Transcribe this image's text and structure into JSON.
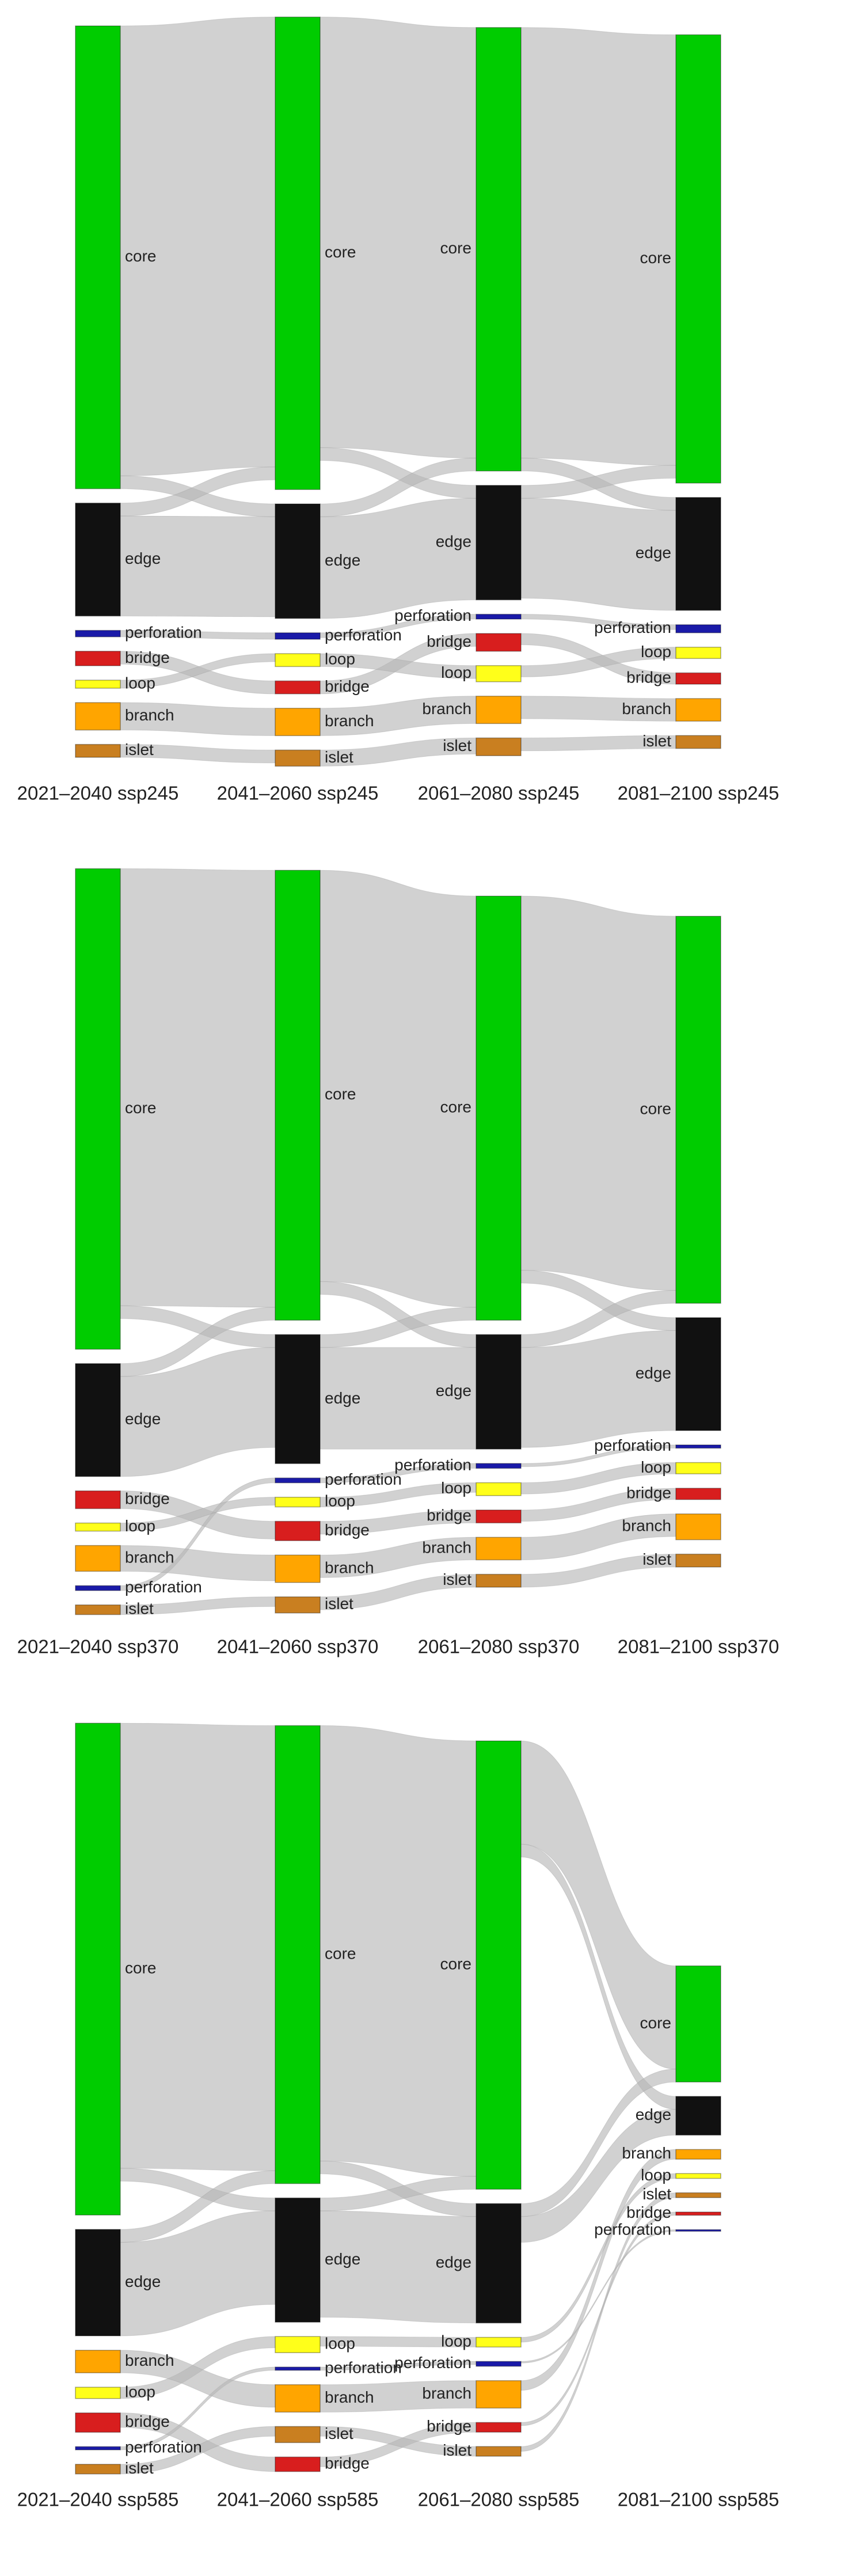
{
  "chart_data": [
    {
      "type": "sankey",
      "colors": {
        "core": "#00cc00",
        "edge": "#111111",
        "perforation": "#1a1aa8",
        "bridge": "#d81e1e",
        "loop": "#ffff1a",
        "branch": "#ffa500",
        "islet": "#c97f20"
      },
      "columns": [
        {
          "label": "2021–2040 ssp245",
          "nodes": [
            {
              "name": "core",
              "value": 287
            },
            {
              "name": "edge",
              "value": 70
            },
            {
              "name": "perforation",
              "value": 4
            },
            {
              "name": "bridge",
              "value": 9
            },
            {
              "name": "loop",
              "value": 5
            },
            {
              "name": "branch",
              "value": 17
            },
            {
              "name": "islet",
              "value": 8
            }
          ]
        },
        {
          "label": "2041–2060 ssp245",
          "nodes": [
            {
              "name": "core",
              "value": 293
            },
            {
              "name": "edge",
              "value": 71
            },
            {
              "name": "perforation",
              "value": 4
            },
            {
              "name": "loop",
              "value": 8
            },
            {
              "name": "bridge",
              "value": 8
            },
            {
              "name": "branch",
              "value": 17
            },
            {
              "name": "islet",
              "value": 10
            }
          ]
        },
        {
          "label": "2061–2080 ssp245",
          "nodes": [
            {
              "name": "core",
              "value": 275
            },
            {
              "name": "edge",
              "value": 71
            },
            {
              "name": "perforation",
              "value": 3
            },
            {
              "name": "bridge",
              "value": 11
            },
            {
              "name": "loop",
              "value": 10
            },
            {
              "name": "branch",
              "value": 17
            },
            {
              "name": "islet",
              "value": 11
            }
          ]
        },
        {
          "label": "2081–2100 ssp245",
          "nodes": [
            {
              "name": "core",
              "value": 278
            },
            {
              "name": "edge",
              "value": 70
            },
            {
              "name": "perforation",
              "value": 5
            },
            {
              "name": "loop",
              "value": 7
            },
            {
              "name": "bridge",
              "value": 7
            },
            {
              "name": "branch",
              "value": 14
            },
            {
              "name": "islet",
              "value": 8
            }
          ]
        }
      ],
      "links": [
        [
          [
            "core",
            "core",
            279
          ],
          [
            "core",
            "edge",
            8
          ],
          [
            "edge",
            "core",
            8
          ],
          [
            "edge",
            "edge",
            62
          ],
          [
            "perforation",
            "perforation",
            4
          ],
          [
            "bridge",
            "bridge",
            8
          ],
          [
            "loop",
            "loop",
            5
          ],
          [
            "branch",
            "branch",
            17
          ],
          [
            "islet",
            "islet",
            8
          ]
        ],
        [
          [
            "core",
            "core",
            267
          ],
          [
            "core",
            "edge",
            8
          ],
          [
            "edge",
            "core",
            8
          ],
          [
            "edge",
            "edge",
            63
          ],
          [
            "perforation",
            "perforation",
            3
          ],
          [
            "bridge",
            "bridge",
            8
          ],
          [
            "loop",
            "loop",
            8
          ],
          [
            "branch",
            "branch",
            17
          ],
          [
            "islet",
            "islet",
            10
          ]
        ],
        [
          [
            "core",
            "core",
            267
          ],
          [
            "core",
            "edge",
            8
          ],
          [
            "edge",
            "core",
            8
          ],
          [
            "edge",
            "edge",
            62
          ],
          [
            "perforation",
            "perforation",
            3
          ],
          [
            "bridge",
            "bridge",
            7
          ],
          [
            "loop",
            "loop",
            7
          ],
          [
            "branch",
            "branch",
            14
          ],
          [
            "islet",
            "islet",
            8
          ]
        ]
      ]
    },
    {
      "type": "sankey",
      "colors": {
        "core": "#00cc00",
        "edge": "#111111",
        "perforation": "#1a1aa8",
        "bridge": "#d81e1e",
        "loop": "#ffff1a",
        "branch": "#ffa500",
        "islet": "#c97f20"
      },
      "columns": [
        {
          "label": "2021–2040 ssp370",
          "nodes": [
            {
              "name": "core",
              "value": 298
            },
            {
              "name": "edge",
              "value": 70
            },
            {
              "name": "bridge",
              "value": 11
            },
            {
              "name": "loop",
              "value": 5
            },
            {
              "name": "branch",
              "value": 16
            },
            {
              "name": "perforation",
              "value": 3
            },
            {
              "name": "islet",
              "value": 6
            }
          ]
        },
        {
          "label": "2041–2060 ssp370",
          "nodes": [
            {
              "name": "core",
              "value": 279
            },
            {
              "name": "edge",
              "value": 80
            },
            {
              "name": "perforation",
              "value": 3
            },
            {
              "name": "loop",
              "value": 6
            },
            {
              "name": "bridge",
              "value": 12
            },
            {
              "name": "branch",
              "value": 17
            },
            {
              "name": "islet",
              "value": 10
            }
          ]
        },
        {
          "label": "2061–2080 ssp370",
          "nodes": [
            {
              "name": "core",
              "value": 263
            },
            {
              "name": "edge",
              "value": 71
            },
            {
              "name": "perforation",
              "value": 3
            },
            {
              "name": "loop",
              "value": 8
            },
            {
              "name": "bridge",
              "value": 8
            },
            {
              "name": "branch",
              "value": 14
            },
            {
              "name": "islet",
              "value": 8
            }
          ]
        },
        {
          "label": "2081–2100 ssp370",
          "nodes": [
            {
              "name": "core",
              "value": 240
            },
            {
              "name": "edge",
              "value": 70
            },
            {
              "name": "perforation",
              "value": 2
            },
            {
              "name": "loop",
              "value": 7
            },
            {
              "name": "bridge",
              "value": 7
            },
            {
              "name": "branch",
              "value": 16
            },
            {
              "name": "islet",
              "value": 8
            }
          ]
        }
      ],
      "links": [
        [
          [
            "core",
            "core",
            271
          ],
          [
            "core",
            "edge",
            8
          ],
          [
            "edge",
            "core",
            8
          ],
          [
            "edge",
            "edge",
            62
          ],
          [
            "perforation",
            "perforation",
            3
          ],
          [
            "bridge",
            "bridge",
            11
          ],
          [
            "loop",
            "loop",
            5
          ],
          [
            "branch",
            "branch",
            16
          ],
          [
            "islet",
            "islet",
            6
          ]
        ],
        [
          [
            "core",
            "core",
            255
          ],
          [
            "core",
            "edge",
            8
          ],
          [
            "edge",
            "core",
            8
          ],
          [
            "edge",
            "edge",
            63
          ],
          [
            "perforation",
            "perforation",
            3
          ],
          [
            "bridge",
            "bridge",
            8
          ],
          [
            "loop",
            "loop",
            6
          ],
          [
            "branch",
            "branch",
            14
          ],
          [
            "islet",
            "islet",
            8
          ]
        ],
        [
          [
            "core",
            "core",
            232
          ],
          [
            "core",
            "edge",
            8
          ],
          [
            "edge",
            "core",
            8
          ],
          [
            "edge",
            "edge",
            62
          ],
          [
            "perforation",
            "perforation",
            2
          ],
          [
            "bridge",
            "bridge",
            7
          ],
          [
            "loop",
            "loop",
            7
          ],
          [
            "branch",
            "branch",
            14
          ],
          [
            "islet",
            "islet",
            8
          ]
        ]
      ]
    },
    {
      "type": "sankey",
      "colors": {
        "core": "#00cc00",
        "edge": "#111111",
        "perforation": "#1a1aa8",
        "bridge": "#d81e1e",
        "loop": "#ffff1a",
        "branch": "#ffa500",
        "islet": "#c97f20"
      },
      "columns": [
        {
          "label": "2021–2040 ssp585",
          "nodes": [
            {
              "name": "core",
              "value": 305
            },
            {
              "name": "edge",
              "value": 66
            },
            {
              "name": "branch",
              "value": 14
            },
            {
              "name": "loop",
              "value": 7
            },
            {
              "name": "bridge",
              "value": 12
            },
            {
              "name": "perforation",
              "value": 2
            },
            {
              "name": "islet",
              "value": 6
            }
          ]
        },
        {
          "label": "2041–2060 ssp585",
          "nodes": [
            {
              "name": "core",
              "value": 284
            },
            {
              "name": "edge",
              "value": 77
            },
            {
              "name": "loop",
              "value": 10
            },
            {
              "name": "perforation",
              "value": 2
            },
            {
              "name": "branch",
              "value": 17
            },
            {
              "name": "islet",
              "value": 10
            },
            {
              "name": "bridge",
              "value": 9
            }
          ]
        },
        {
          "label": "2061–2080 ssp585",
          "nodes": [
            {
              "name": "core",
              "value": 278
            },
            {
              "name": "edge",
              "value": 74
            },
            {
              "name": "loop",
              "value": 6
            },
            {
              "name": "perforation",
              "value": 3
            },
            {
              "name": "branch",
              "value": 17
            },
            {
              "name": "bridge",
              "value": 6
            },
            {
              "name": "islet",
              "value": 6
            }
          ]
        },
        {
          "label": "2081–2100 ssp585",
          "nodes": [
            {
              "name": "core",
              "value": 72
            },
            {
              "name": "edge",
              "value": 24
            },
            {
              "name": "branch",
              "value": 6
            },
            {
              "name": "loop",
              "value": 3
            },
            {
              "name": "islet",
              "value": 3
            },
            {
              "name": "bridge",
              "value": 2
            },
            {
              "name": "perforation",
              "value": 1
            }
          ]
        }
      ],
      "links": [
        [
          [
            "core",
            "core",
            276
          ],
          [
            "core",
            "edge",
            8
          ],
          [
            "edge",
            "core",
            8
          ],
          [
            "edge",
            "edge",
            58
          ],
          [
            "perforation",
            "perforation",
            2
          ],
          [
            "bridge",
            "bridge",
            9
          ],
          [
            "loop",
            "loop",
            7
          ],
          [
            "branch",
            "branch",
            14
          ],
          [
            "islet",
            "islet",
            6
          ]
        ],
        [
          [
            "core",
            "core",
            270
          ],
          [
            "core",
            "edge",
            8
          ],
          [
            "edge",
            "core",
            8
          ],
          [
            "edge",
            "edge",
            66
          ],
          [
            "perforation",
            "perforation",
            2
          ],
          [
            "bridge",
            "bridge",
            6
          ],
          [
            "loop",
            "loop",
            6
          ],
          [
            "branch",
            "branch",
            17
          ],
          [
            "islet",
            "islet",
            6
          ]
        ],
        [
          [
            "core",
            "core",
            64
          ],
          [
            "core",
            "edge",
            8
          ],
          [
            "edge",
            "core",
            8
          ],
          [
            "edge",
            "edge",
            16
          ],
          [
            "perforation",
            "perforation",
            1
          ],
          [
            "bridge",
            "bridge",
            2
          ],
          [
            "loop",
            "loop",
            3
          ],
          [
            "branch",
            "branch",
            6
          ],
          [
            "islet",
            "islet",
            3
          ]
        ]
      ]
    }
  ]
}
